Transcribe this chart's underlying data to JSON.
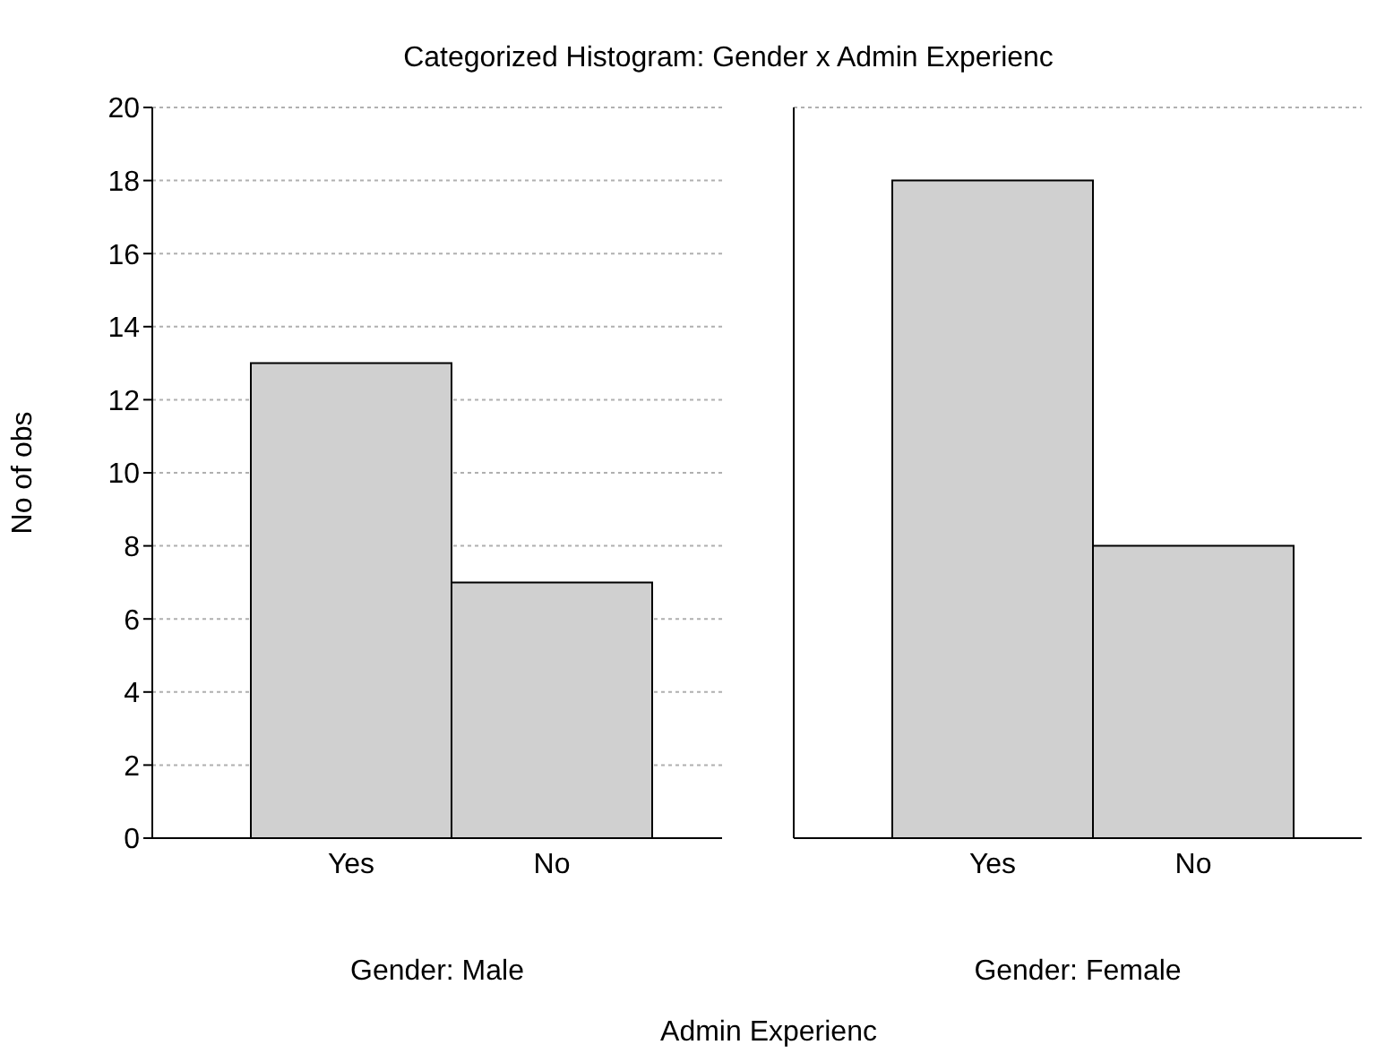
{
  "chart_data": [
    {
      "type": "bar",
      "title": "Categorized Histogram: Gender x Admin Experienc",
      "ylabel": "No of obs",
      "xlabel": "Gender: Male",
      "annotations": [
        "Admin Experienc"
      ],
      "categories": [
        "Yes",
        "No"
      ],
      "values": [
        13,
        7
      ],
      "color": "#d0d0d0",
      "ylim": [
        0,
        20
      ],
      "yticks": [
        0,
        2,
        4,
        6,
        8,
        10,
        12,
        14,
        16,
        18,
        20
      ],
      "grid": "y"
    },
    {
      "type": "bar",
      "xlabel": "Gender: Female",
      "categories": [
        "Yes",
        "No"
      ],
      "values": [
        18,
        8
      ],
      "color": "#d0d0d0",
      "ylim": [
        0,
        20
      ],
      "yticks": [
        0,
        2,
        4,
        6,
        8,
        10,
        12,
        14,
        16,
        18,
        20
      ],
      "grid": "y",
      "tick_labels": "x"
    }
  ]
}
